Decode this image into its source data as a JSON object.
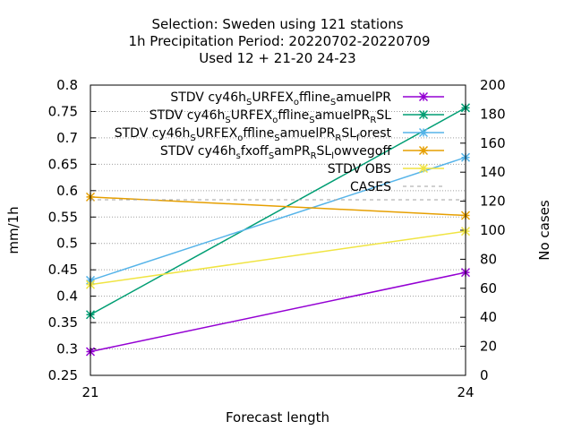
{
  "chart_data": {
    "type": "line",
    "title_lines": [
      "Selection: Sweden using   121 stations",
      "1h Precipitation   Period: 20220702-20220709",
      "Used  12 + 21-20 24-23"
    ],
    "xlabel": "Forecast length",
    "ylabel": "mm/1h",
    "y2label": "No cases",
    "x": [
      21,
      24
    ],
    "xlim": [
      21,
      24
    ],
    "ylim": [
      0.25,
      0.8
    ],
    "y2lim": [
      0,
      200
    ],
    "xticks": [
      "21",
      "24"
    ],
    "yticks": [
      "0.25",
      "0.3",
      "0.35",
      "0.4",
      "0.45",
      "0.5",
      "0.55",
      "0.6",
      "0.65",
      "0.7",
      "0.75",
      "0.8"
    ],
    "y2ticks": [
      "0",
      "20",
      "40",
      "60",
      "80",
      "100",
      "120",
      "140",
      "160",
      "180",
      "200"
    ],
    "grid": true,
    "legend_position": "top-right",
    "series": [
      {
        "name": "STDV cy46h_SURFEX_offline_samuelPR",
        "values": [
          0.295,
          0.445
        ],
        "color": "#9400d3",
        "marker": "x",
        "axis": "y"
      },
      {
        "name": "STDV cy46h_SURFEX_offline_samuelPR_RSL",
        "values": [
          0.365,
          0.757
        ],
        "color": "#009e73",
        "marker": "x",
        "axis": "y"
      },
      {
        "name": "STDV cy46h_SURFEX_offline_samuelPR_RSL_forest",
        "values": [
          0.43,
          0.663
        ],
        "color": "#56b4e9",
        "marker": "x",
        "axis": "y"
      },
      {
        "name": "STDV cy46h_fxoff_samPR_RSL_lowvegoff",
        "values": [
          0.588,
          0.553
        ],
        "color": "#e69f00",
        "marker": "x",
        "axis": "y"
      },
      {
        "name": "STDV OBS",
        "values": [
          0.422,
          0.523
        ],
        "color": "#f0e442",
        "marker": "x",
        "axis": "y"
      },
      {
        "name": "CASES",
        "values": [
          121,
          121
        ],
        "color": "#a0a0a0",
        "marker": "none",
        "dashed": true,
        "axis": "y2"
      }
    ],
    "legend_display": [
      {
        "base": "STDV cy46h",
        "sub1": "S",
        "mid1": "URFEX",
        "sub2": "o",
        "mid2": "ffline",
        "sub3": "S",
        "end": "amuelPR"
      },
      {
        "base": "STDV cy46h",
        "sub1": "S",
        "mid1": "URFEX",
        "sub2": "o",
        "mid2": "ffline",
        "sub3": "S",
        "mid3": "amuelPR",
        "sub4": "R",
        "end": "SL"
      },
      {
        "base": "STDV cy46h",
        "sub1": "S",
        "mid1": "URFEX",
        "sub2": "o",
        "mid2": "ffline",
        "sub3": "S",
        "mid3": "amuelPR",
        "sub4": "R",
        "mid4": "SL",
        "sub5": "f",
        "end": "orest"
      },
      {
        "base": "STDV cy46h",
        "sub1": "s",
        "mid1": "fxoff",
        "sub2": "S",
        "mid2": "amPR",
        "sub3": "R",
        "mid3": "SL",
        "sub4": "l",
        "end": "owvegoff"
      },
      {
        "plain": "STDV OBS"
      },
      {
        "plain": "CASES"
      }
    ]
  }
}
